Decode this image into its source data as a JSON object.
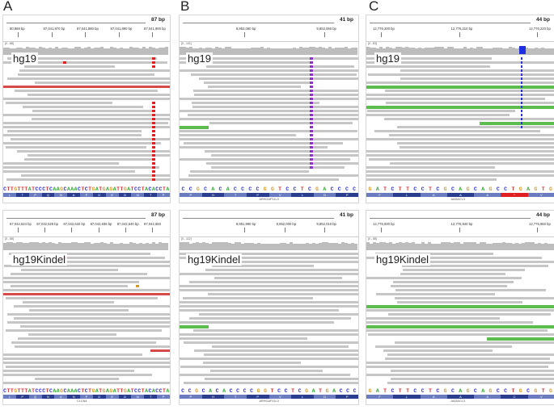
{
  "panels": [
    {
      "key": "A",
      "letter": "A",
      "top": {
        "bp": "87 bp",
        "ticks": [
          "80,869 bp",
          "87,041,870 bp",
          "87,041,880 bp",
          "87,041,890 bp",
          "87,041,900 bp"
        ],
        "range": "[0 - 88]",
        "track": "hg19",
        "seq": "CTTGTTTATCCCTCAAGCAAACTCTGATGAGATTGATCCTACACCTA",
        "aa": [
          "L",
          "T",
          "P",
          "Q",
          "N",
          "A",
          "P",
          "D",
          "E",
          "D",
          "N",
          "T",
          "P"
        ],
        "gene": ""
      },
      "bottom": {
        "bp": "87 bp",
        "ticks": [
          "87,042,624 bp",
          "87,042,628 bp",
          "87,042,632 bp",
          "87,042,636 bp",
          "87,042,640 bp",
          "87,042,650"
        ],
        "range": "[0 - 88]",
        "track": "hg19Kindel",
        "seq": "CTTGTTTATCCCTCAAGCAAACTCTGATGAGATTGATCCTACACCTA",
        "aa": [
          "L",
          "P",
          "Q",
          "N",
          "A",
          "N",
          "P",
          "D",
          "E",
          "D",
          "N",
          "T",
          "P"
        ],
        "gene": "CLCN4"
      }
    },
    {
      "key": "B",
      "letter": "B",
      "top": {
        "bp": "41 bp",
        "ticks": [
          "9,852,050 bp",
          "9,852,060 bp"
        ],
        "range": "[0 - 101]",
        "track": "hg19",
        "seq": "CCGCACACCCCGGTCCTCGACCCC",
        "aa": [
          "P",
          "H",
          "T",
          "P",
          "V",
          "L",
          "D",
          "P"
        ],
        "gene": "ARHGAP11L3"
      },
      "bottom": {
        "bp": "41 bp",
        "ticks": [
          "9,851,990 bp",
          "9,852,000 bp",
          "9,852,010 bp"
        ],
        "range": "[0 - 112]",
        "track": "hg19Kindel",
        "seq": "CCGCACACCCCGGTCCTCGATGACCC",
        "aa": [
          "P",
          "H",
          "T",
          "P",
          "V",
          "L",
          "D",
          "P"
        ],
        "gene": "ARHGAP11L3"
      }
    },
    {
      "key": "C",
      "letter": "C",
      "top": {
        "bp": "44 bp",
        "ticks": [
          "12,776,200 bp",
          "12,776,210 bp",
          "12,776,220 bp"
        ],
        "range": "[0 - 83]",
        "track": "hg19",
        "seq": "GATCTTCCTCGCAGCAGCCTGAGTG",
        "aa": [
          "F",
          "L",
          "A",
          "A",
          "A",
          "*",
          "V"
        ],
        "gene": "AADACL3"
      },
      "bottom": {
        "bp": "44 bp",
        "ticks": [
          "12,775,930 bp",
          "12,775,940 bp",
          "12,775,950 bp"
        ],
        "range": "[0 - 88]",
        "track": "hg19Kindel",
        "seq": "GATCTTCCTCGCAGCAGCCTGCGTG",
        "aa": [
          "F",
          "L",
          "A",
          "A",
          "A",
          "C",
          "V"
        ],
        "gene": "AADACL3"
      }
    }
  ],
  "colors": {
    "A": "#3da83d",
    "C": "#2f2fd6",
    "G": "#d49a2a",
    "T": "#d63232",
    "mismatch_red": "#e02020",
    "insertion": "#8e32c9",
    "highlight_blue": "#1f2ee0"
  }
}
